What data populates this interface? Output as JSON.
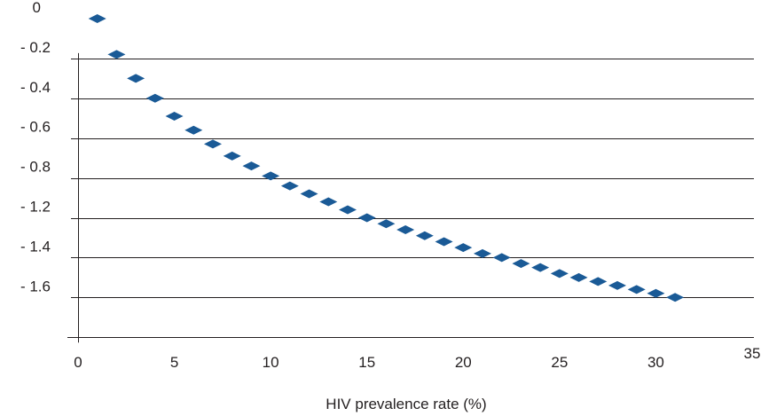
{
  "colors": {
    "marker": "#1a5a96",
    "axis": "#231f20",
    "grid": "#231f20",
    "text": "#231f20"
  },
  "chart_data": {
    "type": "scatter",
    "title": "",
    "xlabel": "HIV prevalence rate (%)",
    "ylabel": "",
    "xlim": [
      0,
      35
    ],
    "x_ticks": [
      0,
      5,
      10,
      15,
      20,
      25,
      30,
      35
    ],
    "x_tick_labels": [
      "0",
      "5",
      "10",
      "15",
      "20",
      "25",
      "30",
      "35"
    ],
    "y_tick_labels": [
      "0",
      "- 0.2",
      "- 0.4",
      "- 0.6",
      "- 0.8",
      "- 1.2",
      "- 1.4",
      "- 1.6",
      ""
    ],
    "grid": "horizontal",
    "legend": "none",
    "marker": "diamond",
    "series": [
      {
        "x": [
          1,
          2,
          3,
          4,
          5,
          6,
          7,
          8,
          9,
          10,
          11,
          12,
          13,
          14,
          15,
          16,
          17,
          18,
          19,
          20,
          21,
          22,
          23,
          24,
          25,
          26,
          27,
          28,
          29,
          30,
          31
        ],
        "y": [
          0,
          -0.18,
          -0.3,
          -0.4,
          -0.49,
          -0.56,
          -0.63,
          -0.69,
          -0.74,
          -0.79,
          -0.84,
          -0.88,
          -0.92,
          -0.96,
          -1.0,
          -1.03,
          -1.06,
          -1.09,
          -1.12,
          -1.15,
          -1.18,
          -1.2,
          -1.23,
          -1.25,
          -1.28,
          -1.3,
          -1.32,
          -1.34,
          -1.36,
          -1.38,
          -1.4
        ]
      }
    ]
  }
}
